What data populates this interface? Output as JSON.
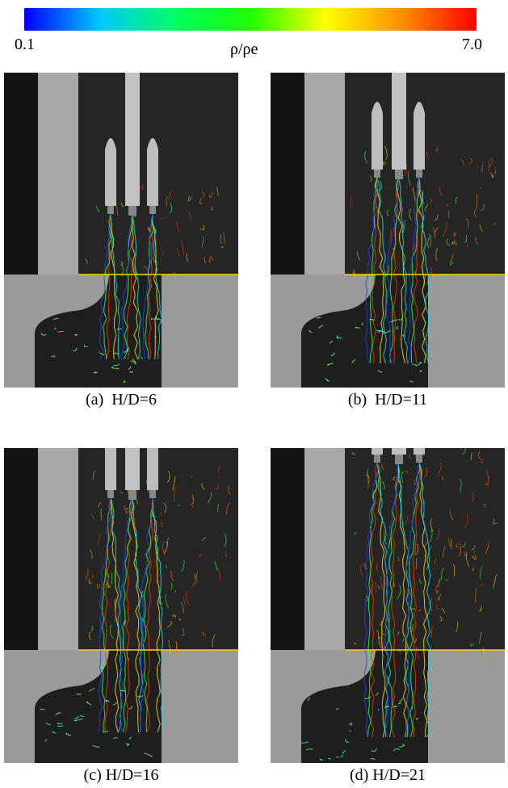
{
  "colorbar": {
    "min": "0.1",
    "max": "7.0",
    "label": "ρ/ρe"
  },
  "panels": [
    {
      "caption": "(a)  H/D=6"
    },
    {
      "caption": "(b)  H/D=11"
    },
    {
      "caption": "(c) H/D=16"
    },
    {
      "caption": "(d) H/D=21"
    }
  ]
}
